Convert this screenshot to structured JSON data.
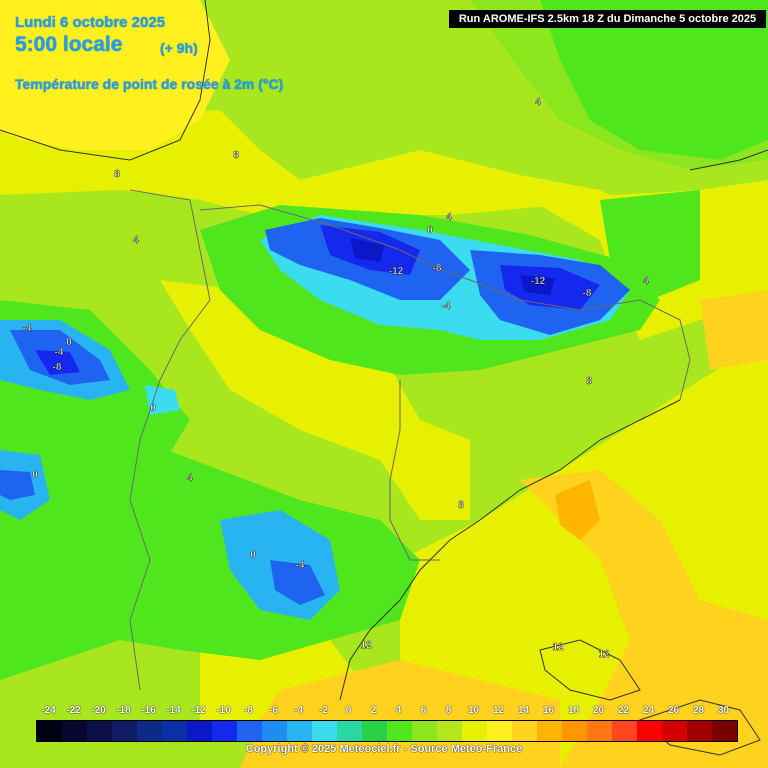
{
  "header": {
    "date": "Lundi 6 octobre 2025",
    "time": "5:00 locale",
    "offset": "(+ 9h)",
    "parameter": "Température de point de rosée à 2m (°C)"
  },
  "run_info": "Run AROME-IFS 2.5km 18 Z du Dimanche 5 octobre 2025",
  "map_labels": [
    "4",
    "8",
    "8",
    "4",
    "0",
    "4",
    "-12",
    "-8",
    "-4",
    "-12",
    "-8",
    "4",
    "8",
    "-4",
    "0",
    "-4",
    "-8",
    "0",
    "0",
    "4",
    "0",
    "-4",
    "8",
    "12",
    "12",
    "12"
  ],
  "scale": {
    "labels": [
      "-24",
      "-22",
      "-20",
      "-18",
      "-16",
      "-14",
      "-12",
      "-10",
      "-8",
      "-6",
      "-4",
      "-2",
      "0",
      "2",
      "4",
      "6",
      "8",
      "10",
      "12",
      "14",
      "16",
      "18",
      "20",
      "22",
      "24",
      "26",
      "28",
      "30"
    ],
    "colors": [
      "#000014",
      "#06062e",
      "#0c1048",
      "#101c64",
      "#0c2a86",
      "#0a30a8",
      "#0a18c8",
      "#1428ee",
      "#1e64f0",
      "#1e8cf0",
      "#28b4f0",
      "#3cdcf0",
      "#28d8a0",
      "#28d246",
      "#50e61e",
      "#8ce61e",
      "#b4e61e",
      "#e6f000",
      "#fff01e",
      "#ffd21e",
      "#ffb400",
      "#ff9600",
      "#ff7814",
      "#ff461e",
      "#ff0000",
      "#d20000",
      "#a00000",
      "#780000"
    ]
  },
  "copyright": "Copyright © 2025 Meteociel.fr - Source Meteo-France"
}
